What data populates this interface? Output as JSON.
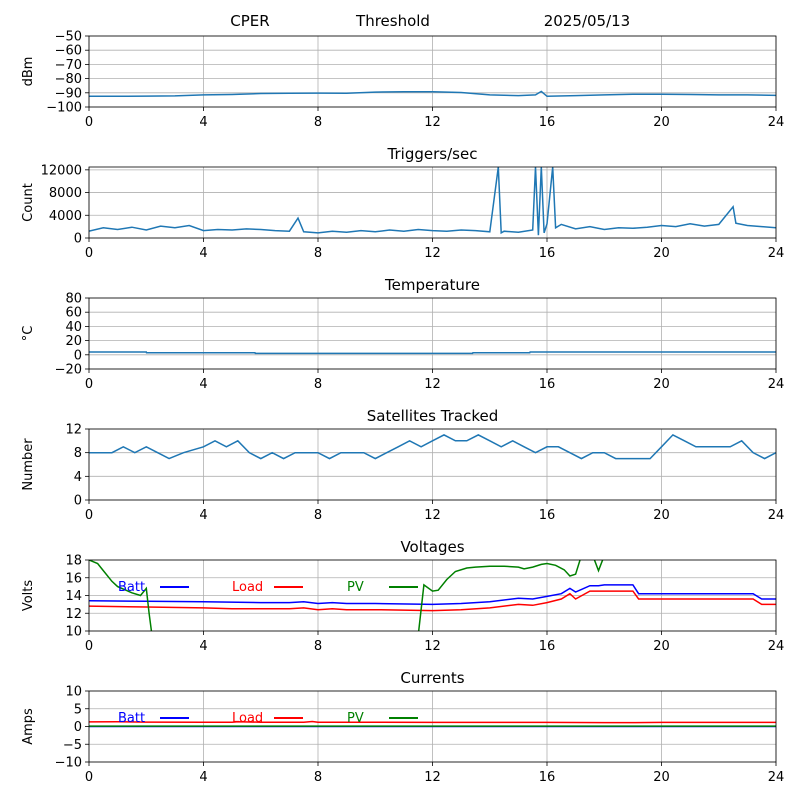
{
  "header": {
    "station": "CPER",
    "mode": "Threshold",
    "date": "2025/05/13"
  },
  "chart_data": [
    {
      "type": "line",
      "title": "",
      "ylabel": "dBm",
      "xlim": [
        0,
        24
      ],
      "ylim": [
        -100,
        -50
      ],
      "xticks": [
        0,
        4,
        8,
        12,
        16,
        20,
        24
      ],
      "yticks": [
        -100,
        -90,
        -80,
        -70,
        -60,
        -50
      ],
      "grid": true,
      "series": [
        {
          "color": "#1f77b4",
          "x": [
            0,
            1,
            2,
            3,
            4,
            5,
            6,
            7,
            8,
            9,
            10,
            11,
            12,
            13,
            14,
            15,
            15.6,
            15.8,
            16,
            17,
            18,
            19,
            20,
            21,
            22,
            23,
            24
          ],
          "y": [
            -92.5,
            -92.5,
            -92.3,
            -92.2,
            -91.5,
            -91.2,
            -90.5,
            -90.3,
            -90.2,
            -90.3,
            -89.5,
            -89.2,
            -89.2,
            -89.8,
            -91.5,
            -92,
            -91.5,
            -89,
            -92.5,
            -92,
            -91.5,
            -91,
            -91,
            -91.2,
            -91.5,
            -91.5,
            -91.8
          ]
        }
      ]
    },
    {
      "type": "line",
      "title": "Triggers/sec",
      "ylabel": "Count",
      "xlim": [
        0,
        24
      ],
      "ylim": [
        0,
        12500
      ],
      "xticks": [
        0,
        4,
        8,
        12,
        16,
        20,
        24
      ],
      "yticks": [
        0,
        4000,
        8000,
        12000
      ],
      "grid": true,
      "series": [
        {
          "color": "#1f77b4",
          "x": [
            0,
            0.5,
            1,
            1.5,
            2,
            2.5,
            3,
            3.5,
            4,
            4.5,
            5,
            5.5,
            6,
            6.5,
            7,
            7.3,
            7.5,
            8,
            8.5,
            9,
            9.5,
            10,
            10.5,
            11,
            11.5,
            12,
            12.5,
            13,
            13.5,
            14,
            14.3,
            14.4,
            14.5,
            15,
            15.5,
            15.6,
            15.7,
            15.8,
            15.9,
            16,
            16.2,
            16.3,
            16.5,
            17,
            17.5,
            18,
            18.5,
            19,
            19.5,
            20,
            20.5,
            21,
            21.5,
            22,
            22.5,
            22.6,
            23,
            23.5,
            24
          ],
          "y": [
            1200,
            1800,
            1500,
            1900,
            1400,
            2100,
            1800,
            2200,
            1300,
            1500,
            1400,
            1600,
            1500,
            1300,
            1200,
            3500,
            1100,
            900,
            1200,
            1000,
            1300,
            1100,
            1400,
            1200,
            1500,
            1300,
            1200,
            1400,
            1300,
            1100,
            12500,
            900,
            1200,
            1000,
            1400,
            12500,
            500,
            12500,
            900,
            2500,
            12500,
            1800,
            2400,
            1600,
            2000,
            1500,
            1800,
            1700,
            1900,
            2200,
            2000,
            2500,
            2100,
            2400,
            5500,
            2600,
            2200,
            2000,
            1800
          ]
        }
      ]
    },
    {
      "type": "line",
      "title": "Temperature",
      "ylabel": "°C",
      "xlim": [
        0,
        24
      ],
      "ylim": [
        -20,
        80
      ],
      "xticks": [
        0,
        4,
        8,
        12,
        16,
        20,
        24
      ],
      "yticks": [
        -20,
        0,
        20,
        40,
        60,
        80
      ],
      "grid": true,
      "series": [
        {
          "color": "#1f77b4",
          "x": [
            0,
            2,
            2.01,
            5.8,
            5.81,
            13.4,
            13.41,
            15.4,
            15.41,
            24
          ],
          "y": [
            4,
            4,
            3,
            3,
            2,
            2,
            3,
            3,
            4,
            4
          ]
        }
      ]
    },
    {
      "type": "line",
      "title": "Satellites Tracked",
      "ylabel": "Number",
      "xlim": [
        0,
        24
      ],
      "ylim": [
        0,
        12
      ],
      "xticks": [
        0,
        4,
        8,
        12,
        16,
        20,
        24
      ],
      "yticks": [
        0,
        4,
        8,
        12
      ],
      "grid": true,
      "series": [
        {
          "color": "#1f77b4",
          "x": [
            0,
            0.8,
            1.2,
            1.6,
            2.0,
            2.4,
            2.8,
            3.3,
            4.0,
            4.4,
            4.8,
            5.2,
            5.6,
            6.0,
            6.4,
            6.8,
            7.2,
            7.6,
            8.0,
            8.4,
            8.8,
            9.2,
            9.6,
            10.0,
            10.4,
            10.8,
            11.2,
            11.6,
            12.0,
            12.4,
            12.8,
            13.2,
            13.6,
            14.0,
            14.4,
            14.8,
            15.2,
            15.6,
            16.0,
            16.4,
            16.8,
            17.2,
            17.6,
            18.0,
            18.4,
            18.8,
            19.2,
            19.6,
            20.0,
            20.4,
            20.8,
            21.2,
            21.6,
            22.0,
            22.4,
            22.8,
            23.2,
            23.6,
            24.0
          ],
          "y": [
            8,
            8,
            9,
            8,
            9,
            8,
            7,
            8,
            9,
            10,
            9,
            10,
            8,
            7,
            8,
            7,
            8,
            8,
            8,
            7,
            8,
            8,
            8,
            7,
            8,
            9,
            10,
            9,
            10,
            11,
            10,
            10,
            11,
            10,
            9,
            10,
            9,
            8,
            9,
            9,
            8,
            7,
            8,
            8,
            7,
            7,
            7,
            7,
            9,
            11,
            10,
            9,
            9,
            9,
            9,
            10,
            8,
            7,
            8
          ]
        }
      ]
    },
    {
      "type": "line",
      "title": "Voltages",
      "ylabel": "Volts",
      "xlim": [
        0,
        24
      ],
      "ylim": [
        10,
        18
      ],
      "xticks": [
        0,
        4,
        8,
        12,
        16,
        20,
        24
      ],
      "yticks": [
        10,
        12,
        14,
        16,
        18
      ],
      "grid": true,
      "legend": [
        "Batt",
        "Load",
        "PV"
      ],
      "series": [
        {
          "name": "Batt",
          "color": "#0000ff",
          "x": [
            0,
            2,
            4,
            6,
            7,
            7.5,
            8,
            8.5,
            9,
            10,
            12,
            13,
            14,
            15,
            15.5,
            16,
            16.5,
            16.8,
            17,
            17.5,
            17.8,
            18,
            19,
            19.2,
            20,
            22,
            23.2,
            23.5,
            24
          ],
          "y": [
            13.4,
            13.35,
            13.3,
            13.2,
            13.2,
            13.3,
            13.1,
            13.2,
            13.1,
            13.1,
            13.0,
            13.1,
            13.3,
            13.7,
            13.6,
            13.9,
            14.2,
            14.8,
            14.4,
            15.1,
            15.1,
            15.2,
            15.2,
            14.2,
            14.2,
            14.2,
            14.2,
            13.6,
            13.6
          ]
        },
        {
          "name": "Load",
          "color": "#ff0000",
          "x": [
            0,
            2,
            4,
            5,
            6,
            7,
            7.5,
            8,
            8.5,
            9,
            10,
            12,
            13,
            14,
            15,
            15.5,
            16,
            16.5,
            16.8,
            17,
            17.5,
            17.8,
            18,
            19,
            19.2,
            20,
            22,
            23.2,
            23.5,
            24
          ],
          "y": [
            12.8,
            12.7,
            12.6,
            12.5,
            12.5,
            12.5,
            12.6,
            12.4,
            12.5,
            12.4,
            12.4,
            12.3,
            12.4,
            12.6,
            13.0,
            12.9,
            13.2,
            13.6,
            14.2,
            13.6,
            14.5,
            14.5,
            14.5,
            14.5,
            13.6,
            13.6,
            13.6,
            13.6,
            13.0,
            13.0
          ]
        },
        {
          "name": "PV",
          "color": "#008000",
          "x": [
            0,
            0.3,
            0.5,
            0.8,
            1.0,
            1.5,
            1.8,
            2.0,
            2.1,
            2.2,
            11.5,
            11.7,
            12.0,
            12.2,
            12.5,
            12.8,
            13.2,
            13.5,
            14,
            14.5,
            15,
            15.2,
            15.5,
            15.8,
            16,
            16.3,
            16.6,
            16.8,
            17.0,
            17.2,
            17.6,
            17.8,
            18.0
          ],
          "y": [
            18.0,
            17.6,
            16.8,
            15.6,
            15.0,
            14.3,
            14.0,
            14.8,
            12.0,
            9.5,
            9.5,
            15.2,
            14.5,
            14.6,
            15.8,
            16.7,
            17.1,
            17.2,
            17.3,
            17.3,
            17.2,
            17.0,
            17.2,
            17.5,
            17.6,
            17.4,
            16.9,
            16.2,
            16.4,
            18.5,
            18.5,
            16.8,
            18.5
          ]
        }
      ]
    },
    {
      "type": "line",
      "title": "Currents",
      "ylabel": "Amps",
      "xlim": [
        0,
        24
      ],
      "ylim": [
        -10,
        10
      ],
      "xticks": [
        0,
        4,
        8,
        12,
        16,
        20,
        24
      ],
      "yticks": [
        -10,
        -5,
        0,
        5,
        10
      ],
      "grid": true,
      "legend": [
        "Batt",
        "Load",
        "PV"
      ],
      "series": [
        {
          "name": "Batt",
          "color": "#0000ff",
          "x": [
            0,
            24
          ],
          "y": [
            0,
            0
          ]
        },
        {
          "name": "Load",
          "color": "#ff0000",
          "x": [
            0,
            1,
            2,
            4,
            5,
            5.2,
            6,
            7.5,
            7.8,
            8,
            10,
            12,
            14,
            16,
            18,
            19,
            20,
            22,
            24
          ],
          "y": [
            1.3,
            1.35,
            1.25,
            1.2,
            1.2,
            1.35,
            1.2,
            1.2,
            1.4,
            1.2,
            1.2,
            1.15,
            1.15,
            1.15,
            1.1,
            1.1,
            1.15,
            1.15,
            1.15
          ]
        },
        {
          "name": "PV",
          "color": "#008000",
          "x": [
            0,
            24
          ],
          "y": [
            0.1,
            0.1
          ]
        }
      ]
    }
  ]
}
